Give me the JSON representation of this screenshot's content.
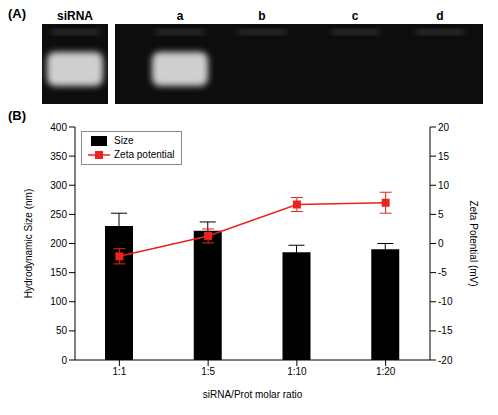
{
  "chart_data": {
    "type": "bar",
    "categories": [
      "1:1",
      "1:5",
      "1:10",
      "1:20"
    ],
    "x_label": "siRNA/Prot molar ratio",
    "y_label": "Hydrodynamic Size (nm)",
    "y2_label": "Zeta Potential (mV)",
    "ylim": [
      0,
      400
    ],
    "yticks": [
      0,
      50,
      100,
      150,
      200,
      250,
      300,
      350,
      400
    ],
    "y2lim": [
      -20,
      20
    ],
    "y2ticks": [
      -20,
      -15,
      -10,
      -5,
      0,
      5,
      10,
      15,
      20
    ],
    "legend": "upper left",
    "grid": false,
    "series": [
      {
        "name": "Size",
        "type": "bar",
        "color": "#000000",
        "values": [
          230,
          222,
          185,
          190
        ],
        "errors": [
          22,
          15,
          12,
          10
        ]
      },
      {
        "name": "Zeta potential",
        "type": "line",
        "axis": "y2",
        "color": "#e8241c",
        "marker": "square",
        "values": [
          -2.2,
          1.3,
          6.7,
          7.0
        ],
        "errors": [
          1.3,
          1.2,
          1.2,
          1.8
        ]
      }
    ]
  },
  "panel_labels": [
    "(A)",
    "(B)"
  ],
  "gel": {
    "lanes": [
      "siRNA",
      "a",
      "b",
      "c",
      "d"
    ],
    "band_visible": [
      true,
      true,
      false,
      false,
      false
    ]
  }
}
